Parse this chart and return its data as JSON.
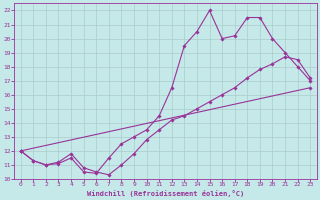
{
  "title": "",
  "xlabel": "Windchill (Refroidissement éolien,°C)",
  "ylabel": "",
  "bg_color": "#c5e8e8",
  "line_color": "#993399",
  "grid_color": "#aacccc",
  "xmin": -0.5,
  "xmax": 23.5,
  "ymin": 10,
  "ymax": 22.5,
  "line1_x": [
    0,
    1,
    2,
    3,
    4,
    5,
    6,
    7,
    8,
    9,
    10,
    11,
    12,
    13,
    14,
    15,
    16,
    17,
    18,
    19,
    20,
    21,
    22,
    23
  ],
  "line1_y": [
    12,
    11.3,
    11,
    11.1,
    11.5,
    10.5,
    10.4,
    11.5,
    12.5,
    13.0,
    13.5,
    14.5,
    16.5,
    19.5,
    20.5,
    22.0,
    20.0,
    20.2,
    21.5,
    21.5,
    20.0,
    19.0,
    18.0,
    17.0
  ],
  "line2_x": [
    0,
    1,
    2,
    3,
    4,
    5,
    6,
    7,
    8,
    9,
    10,
    11,
    12,
    13,
    14,
    15,
    16,
    17,
    18,
    19,
    20,
    21,
    22,
    23
  ],
  "line2_y": [
    12,
    11.3,
    11.0,
    11.2,
    11.8,
    10.8,
    10.5,
    10.3,
    11.0,
    11.8,
    12.8,
    13.5,
    14.2,
    14.5,
    15.0,
    15.5,
    16.0,
    16.5,
    17.2,
    17.8,
    18.2,
    18.7,
    18.5,
    17.2
  ],
  "line3_x": [
    0,
    23
  ],
  "line3_y": [
    12,
    16.5
  ],
  "xticks": [
    0,
    1,
    2,
    3,
    4,
    5,
    6,
    7,
    8,
    9,
    10,
    11,
    12,
    13,
    14,
    15,
    16,
    17,
    18,
    19,
    20,
    21,
    22,
    23
  ],
  "yticks": [
    10,
    11,
    12,
    13,
    14,
    15,
    16,
    17,
    18,
    19,
    20,
    21,
    22
  ]
}
